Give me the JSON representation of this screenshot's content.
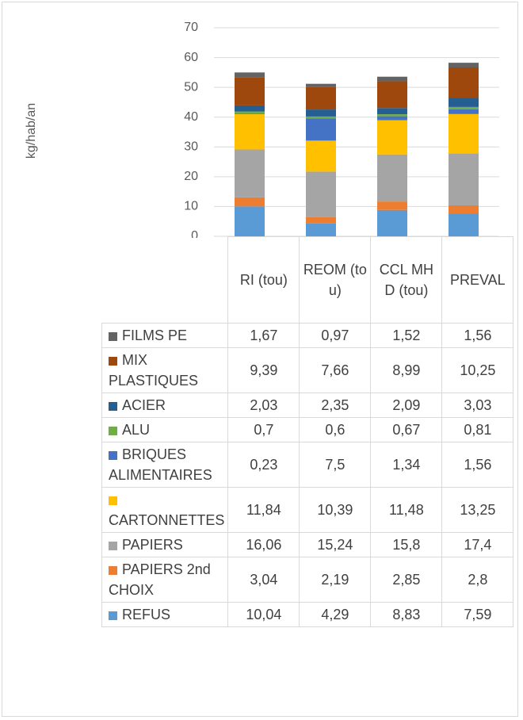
{
  "chart_data": {
    "type": "bar",
    "stacked": true,
    "y_label": "kg/hab/an",
    "categories": [
      "RI (tou)",
      "REOM (tou)",
      "CCL MHD (tou)",
      "PREVAL"
    ],
    "ylim": [
      0,
      70
    ],
    "yticks": [
      0,
      10,
      20,
      30,
      40,
      50,
      60,
      70
    ],
    "grid": true,
    "series": [
      {
        "name": "REFUS",
        "color": "#5b9bd5",
        "values": [
          10.04,
          4.29,
          8.83,
          7.59
        ],
        "value_labels": [
          "10,04",
          "4,29",
          "8,83",
          "7,59"
        ]
      },
      {
        "name": "PAPIERS 2nd CHOIX",
        "color": "#ed7d31",
        "values": [
          3.04,
          2.19,
          2.85,
          2.8
        ],
        "value_labels": [
          "3,04",
          "2,19",
          "2,85",
          "2,8"
        ]
      },
      {
        "name": "PAPIERS",
        "color": "#a5a5a5",
        "values": [
          16.06,
          15.24,
          15.8,
          17.4
        ],
        "value_labels": [
          "16,06",
          "15,24",
          "15,8",
          "17,4"
        ]
      },
      {
        "name": "CARTONNETTES",
        "color": "#ffc000",
        "values": [
          11.84,
          10.39,
          11.48,
          13.25
        ],
        "value_labels": [
          "11,84",
          "10,39",
          "11,48",
          "13,25"
        ]
      },
      {
        "name": "BRIQUES ALIMENTAIRES",
        "color": "#4472c4",
        "values": [
          0.23,
          7.5,
          1.34,
          1.56
        ],
        "value_labels": [
          "0,23",
          "7,5",
          "1,34",
          "1,56"
        ]
      },
      {
        "name": "ALU",
        "color": "#70ad47",
        "values": [
          0.7,
          0.6,
          0.67,
          0.81
        ],
        "value_labels": [
          "0,7",
          "0,6",
          "0,67",
          "0,81"
        ]
      },
      {
        "name": "ACIER",
        "color": "#255e91",
        "values": [
          2.03,
          2.35,
          2.09,
          3.03
        ],
        "value_labels": [
          "2,03",
          "2,35",
          "2,09",
          "3,03"
        ]
      },
      {
        "name": "MIX PLASTIQUES",
        "color": "#9e480e",
        "values": [
          9.39,
          7.66,
          8.99,
          10.25
        ],
        "value_labels": [
          "9,39",
          "7,66",
          "8,99",
          "10,25"
        ]
      },
      {
        "name": "FILMS PE",
        "color": "#636363",
        "values": [
          1.67,
          0.97,
          1.52,
          1.56
        ],
        "value_labels": [
          "1,67",
          "0,97",
          "1,52",
          "1,56"
        ]
      }
    ]
  }
}
